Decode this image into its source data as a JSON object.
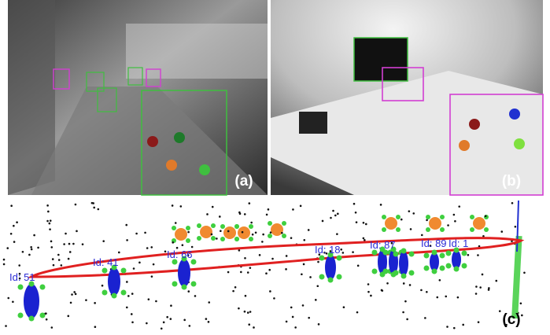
{
  "panels": {
    "a": {
      "label": "(a)"
    },
    "b": {
      "label": "(b)"
    },
    "c": {
      "label": "(c)",
      "object_ids": [
        "Id: 51",
        "Id: 41",
        "Id: 66",
        "Id: 18",
        "Id: 87",
        "Id: 89",
        "Id: 1"
      ]
    }
  }
}
